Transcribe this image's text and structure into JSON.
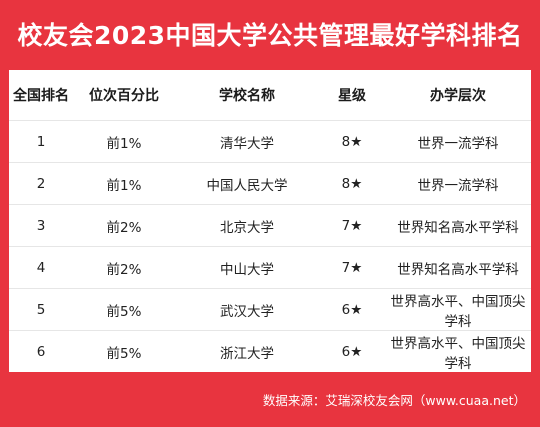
{
  "header": {
    "title": "校友会2023中国大学公共管理最好学科排名"
  },
  "table": {
    "columns": [
      "全国排名",
      "位次百分比",
      "学校名称",
      "星级",
      "办学层次"
    ],
    "rows": [
      {
        "rank": "1",
        "percentile": "前1%",
        "school": "清华大学",
        "stars": "8★",
        "level": "世界一流学科"
      },
      {
        "rank": "2",
        "percentile": "前1%",
        "school": "中国人民大学",
        "stars": "8★",
        "level": "世界一流学科"
      },
      {
        "rank": "3",
        "percentile": "前2%",
        "school": "北京大学",
        "stars": "7★",
        "level": "世界知名高水平学科"
      },
      {
        "rank": "4",
        "percentile": "前2%",
        "school": "中山大学",
        "stars": "7★",
        "level": "世界知名高水平学科"
      },
      {
        "rank": "5",
        "percentile": "前5%",
        "school": "武汉大学",
        "stars": "6★",
        "level": "世界高水平、中国顶尖学科"
      },
      {
        "rank": "6",
        "percentile": "前5%",
        "school": "浙江大学",
        "stars": "6★",
        "level": "世界高水平、中国顶尖学科"
      }
    ]
  },
  "footer": {
    "source": "数据来源：艾瑞深校友会网（www.cuaa.net）"
  },
  "colors": {
    "background": "#e8343f",
    "card": "#ffffff",
    "divider": "#e6e6e6"
  }
}
